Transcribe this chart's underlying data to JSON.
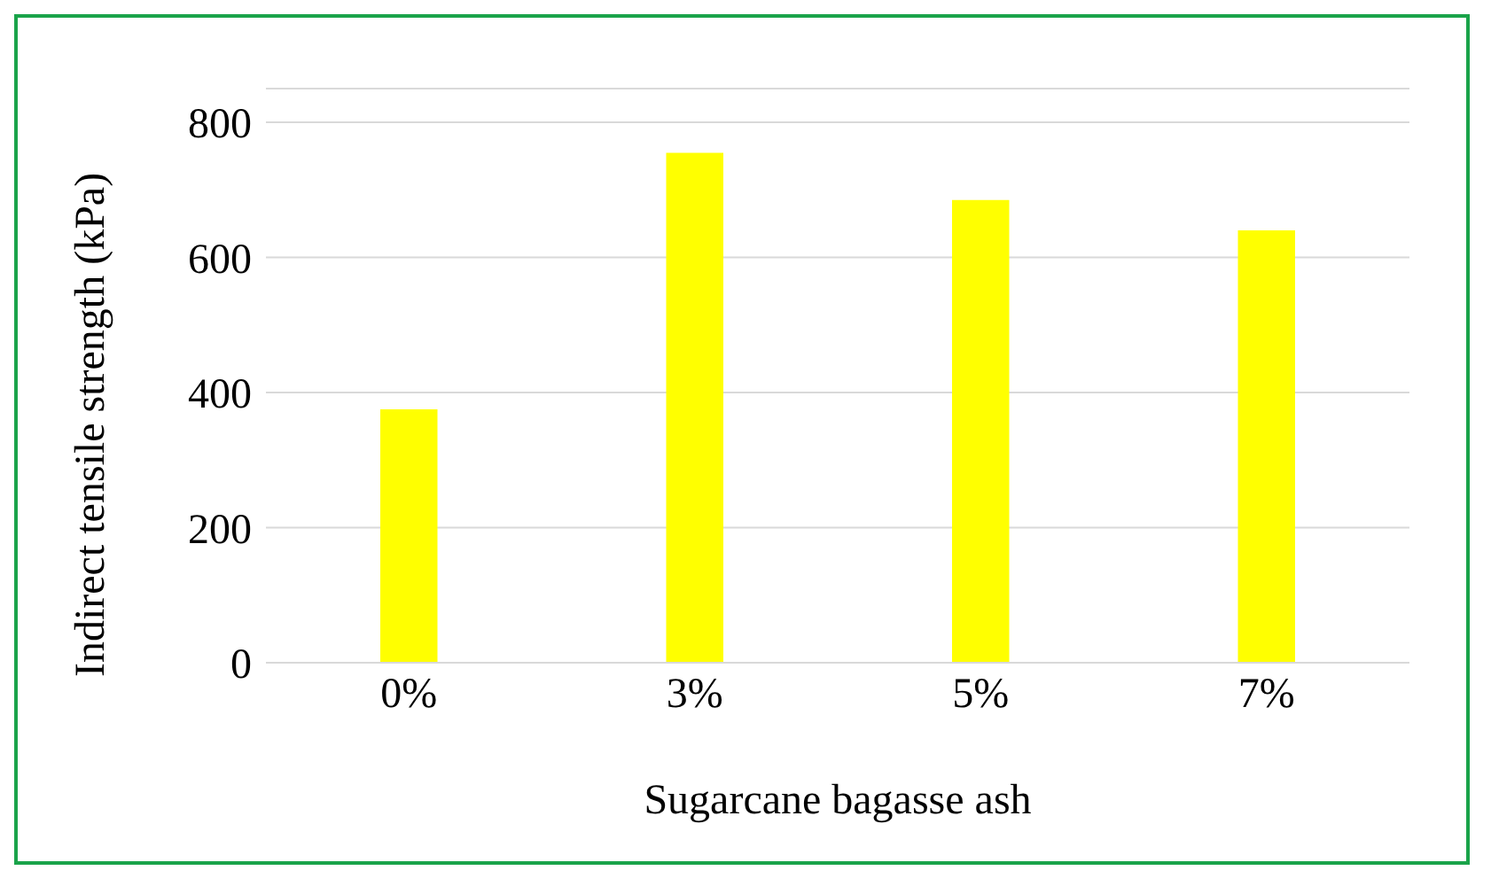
{
  "chart_data": {
    "type": "bar",
    "xlabel": "Sugarcane bagasse ash",
    "ylabel": "Indirect tensile strength (kPa)",
    "categories": [
      "0%",
      "3%",
      "5%",
      "7%"
    ],
    "values": [
      375,
      755,
      685,
      640
    ],
    "color": "#ffff00",
    "ylim": [
      0,
      850
    ],
    "yticks": [
      0,
      200,
      400,
      600,
      800
    ],
    "grid": "y",
    "legend": false
  }
}
